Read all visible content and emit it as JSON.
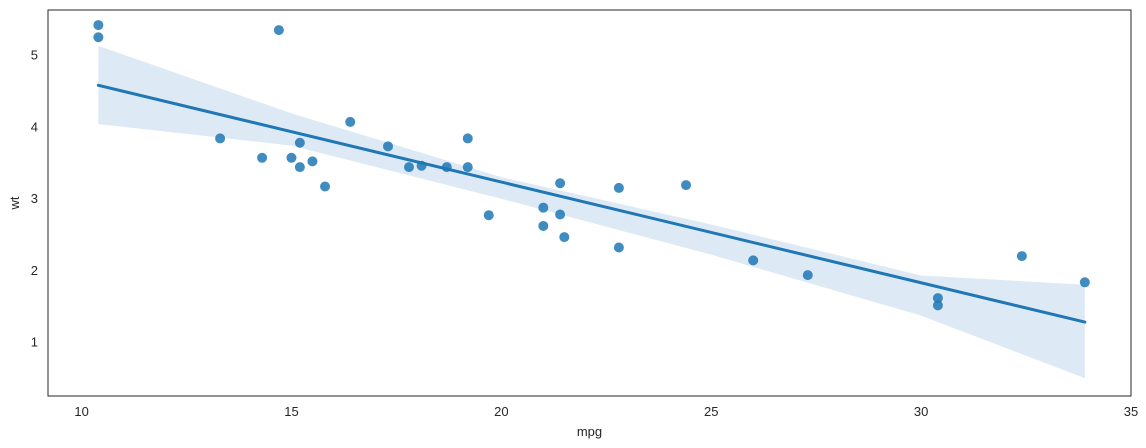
{
  "chart_data": {
    "type": "scatter",
    "title": "",
    "xlabel": "mpg",
    "ylabel": "wt",
    "xlim": [
      9.2,
      35
    ],
    "ylim": [
      0.25,
      5.63
    ],
    "xticks": [
      10,
      15,
      20,
      25,
      30,
      35
    ],
    "yticks": [
      1,
      2,
      3,
      4,
      5
    ],
    "grid": false,
    "colors": {
      "points": "#1f77b4",
      "line": "#1f77b4",
      "band": "#c6dbef"
    },
    "points": [
      {
        "x": 10.4,
        "y": 5.42
      },
      {
        "x": 10.4,
        "y": 5.25
      },
      {
        "x": 14.7,
        "y": 5.35
      },
      {
        "x": 13.3,
        "y": 3.84
      },
      {
        "x": 14.3,
        "y": 3.57
      },
      {
        "x": 15.0,
        "y": 3.57
      },
      {
        "x": 15.2,
        "y": 3.78
      },
      {
        "x": 15.2,
        "y": 3.44
      },
      {
        "x": 15.5,
        "y": 3.52
      },
      {
        "x": 15.8,
        "y": 3.17
      },
      {
        "x": 16.4,
        "y": 4.07
      },
      {
        "x": 17.3,
        "y": 3.73
      },
      {
        "x": 17.8,
        "y": 3.44
      },
      {
        "x": 18.1,
        "y": 3.46
      },
      {
        "x": 18.7,
        "y": 3.44
      },
      {
        "x": 19.2,
        "y": 3.44
      },
      {
        "x": 19.2,
        "y": 3.84
      },
      {
        "x": 19.7,
        "y": 2.77
      },
      {
        "x": 21.0,
        "y": 2.62
      },
      {
        "x": 21.0,
        "y": 2.875
      },
      {
        "x": 21.4,
        "y": 3.215
      },
      {
        "x": 21.4,
        "y": 2.78
      },
      {
        "x": 21.5,
        "y": 2.465
      },
      {
        "x": 22.8,
        "y": 2.32
      },
      {
        "x": 22.8,
        "y": 3.15
      },
      {
        "x": 24.4,
        "y": 3.19
      },
      {
        "x": 26.0,
        "y": 2.14
      },
      {
        "x": 27.3,
        "y": 1.935
      },
      {
        "x": 30.4,
        "y": 1.615
      },
      {
        "x": 30.4,
        "y": 1.513
      },
      {
        "x": 32.4,
        "y": 2.2
      },
      {
        "x": 33.9,
        "y": 1.835
      }
    ],
    "regression_line": [
      {
        "x": 10.4,
        "y": 4.58
      },
      {
        "x": 33.9,
        "y": 1.28
      }
    ],
    "confidence_band": {
      "x": [
        10.4,
        15,
        20,
        25,
        30,
        33.9
      ],
      "lower": [
        4.04,
        3.74,
        3.0,
        2.22,
        1.37,
        0.5
      ],
      "upper": [
        5.13,
        4.19,
        3.3,
        2.64,
        1.93,
        1.8
      ]
    }
  }
}
